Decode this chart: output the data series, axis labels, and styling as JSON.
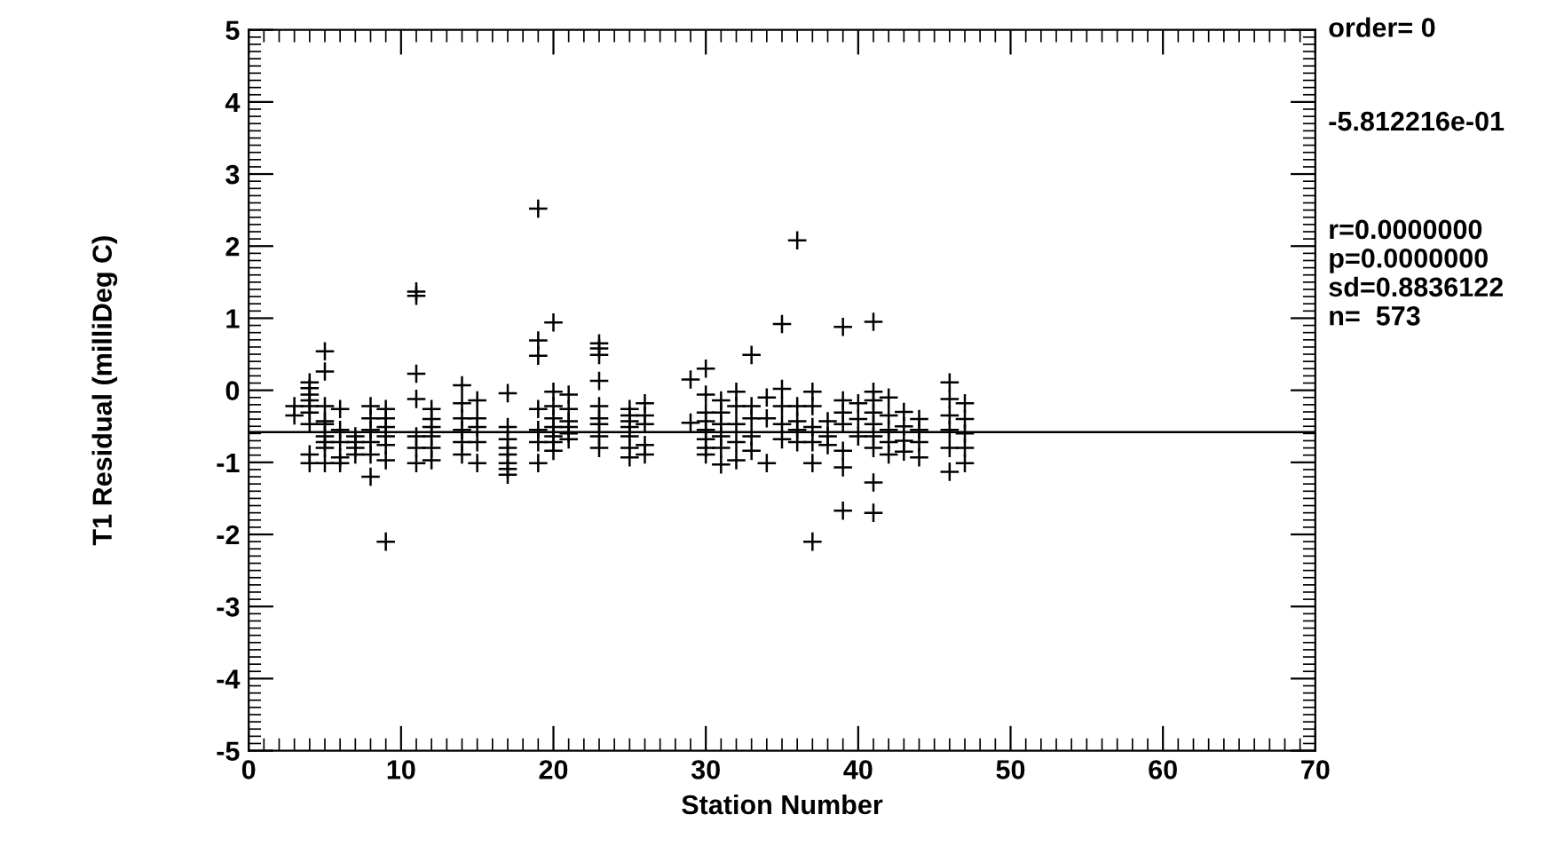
{
  "chart_data": {
    "type": "scatter",
    "xlabel": "Station Number",
    "ylabel": "T1 Residual (milliDeg C)",
    "xlim": [
      0,
      70
    ],
    "xticks": [
      0,
      10,
      20,
      30,
      40,
      50,
      60,
      70
    ],
    "ylim": [
      -5,
      5
    ],
    "yticks": [
      -5,
      -4,
      -3,
      -2,
      -1,
      0,
      1,
      2,
      3,
      4,
      5
    ],
    "grid": false,
    "marker": "cross",
    "series": [
      {
        "color": "#000000",
        "x": [
          3,
          3,
          4,
          4,
          4,
          4,
          4,
          4,
          4,
          4,
          4,
          5,
          5,
          5,
          5,
          5,
          5,
          5,
          5,
          5,
          6,
          6,
          6,
          6,
          6,
          7,
          7,
          7,
          7,
          8,
          8,
          8,
          8,
          8,
          8,
          9,
          9,
          9,
          9,
          9,
          9,
          9,
          11,
          11,
          11,
          11,
          11,
          11,
          11,
          12,
          12,
          12,
          12,
          12,
          12,
          14,
          14,
          14,
          14,
          14,
          14,
          15,
          15,
          15,
          15,
          15,
          17,
          17,
          17,
          17,
          17,
          17,
          17,
          17,
          19,
          19,
          19,
          19,
          19,
          19,
          19,
          20,
          20,
          20,
          20,
          20,
          20,
          20,
          20,
          21,
          21,
          21,
          21,
          21,
          21,
          23,
          23,
          23,
          23,
          23,
          23,
          23,
          23,
          23,
          25,
          25,
          25,
          25,
          25,
          25,
          25,
          26,
          26,
          26,
          26,
          26,
          29,
          29,
          30,
          30,
          30,
          30,
          30,
          30,
          30,
          30,
          31,
          31,
          31,
          31,
          31,
          31,
          32,
          32,
          32,
          32,
          32,
          33,
          33,
          33,
          33,
          33,
          34,
          34,
          34,
          35,
          35,
          35,
          35,
          35,
          36,
          36,
          36,
          36,
          36,
          37,
          37,
          37,
          37,
          37,
          37,
          38,
          38,
          38,
          39,
          39,
          39,
          39,
          39,
          39,
          39,
          40,
          40,
          40,
          41,
          41,
          41,
          41,
          41,
          41,
          41,
          41,
          41,
          42,
          42,
          42,
          42,
          42,
          43,
          43,
          43,
          43,
          44,
          44,
          44,
          44,
          46,
          46,
          46,
          46,
          46,
          46,
          47,
          47,
          47,
          47,
          47
        ],
        "values": [
          -0.22,
          -0.35,
          0.11,
          0.03,
          -0.06,
          -0.14,
          -0.22,
          -0.31,
          -0.47,
          -0.89,
          -1.01,
          0.54,
          0.26,
          -0.22,
          -0.43,
          -0.47,
          -0.64,
          -0.72,
          -0.8,
          -1.01,
          -0.26,
          -0.55,
          -0.72,
          -0.93,
          -1.01,
          -0.64,
          -0.72,
          -0.8,
          -0.89,
          -0.22,
          -0.39,
          -0.55,
          -0.72,
          -0.89,
          -1.2,
          -0.26,
          -0.39,
          -0.51,
          -0.64,
          -0.76,
          -0.97,
          -2.1,
          1.37,
          1.31,
          0.23,
          -0.12,
          -0.64,
          -0.8,
          -1.01,
          -0.26,
          -0.4,
          -0.51,
          -0.64,
          -0.8,
          -0.97,
          0.07,
          -0.18,
          -0.39,
          -0.55,
          -0.72,
          -0.89,
          -0.14,
          -0.39,
          -0.51,
          -0.72,
          -1.01,
          -0.04,
          -0.51,
          -0.68,
          -0.8,
          -0.89,
          -1.01,
          -1.09,
          -1.17,
          2.52,
          0.69,
          0.48,
          -0.26,
          -0.55,
          -0.72,
          -1.01,
          0.94,
          -0.02,
          -0.22,
          -0.39,
          -0.51,
          -0.64,
          -0.72,
          -0.84,
          -0.06,
          -0.26,
          -0.43,
          -0.51,
          -0.6,
          -0.68,
          0.65,
          0.58,
          0.49,
          0.13,
          -0.22,
          -0.39,
          -0.47,
          -0.64,
          -0.8,
          -0.26,
          -0.35,
          -0.43,
          -0.51,
          -0.64,
          -0.8,
          -0.93,
          -0.18,
          -0.35,
          -0.47,
          -0.76,
          -0.89,
          0.15,
          -0.45,
          0.3,
          -0.06,
          -0.31,
          -0.43,
          -0.55,
          -0.68,
          -0.8,
          -0.89,
          -0.14,
          -0.31,
          -0.47,
          -0.64,
          -0.8,
          -1.03,
          -0.02,
          -0.22,
          -0.47,
          -0.72,
          -0.97,
          0.49,
          -0.22,
          -0.39,
          -0.64,
          -0.84,
          -0.1,
          -0.39,
          -1.01,
          0.92,
          0.02,
          -0.22,
          -0.47,
          -0.68,
          2.08,
          -0.22,
          -0.43,
          -0.55,
          -0.72,
          -0.02,
          -0.22,
          -0.51,
          -0.72,
          -1.01,
          -2.1,
          -0.43,
          -0.64,
          -0.76,
          0.88,
          -0.14,
          -0.31,
          -0.47,
          -0.84,
          -1.07,
          -1.67,
          -0.18,
          -0.4,
          -0.64,
          0.95,
          -0.02,
          -0.14,
          -0.31,
          -0.47,
          -0.64,
          -0.8,
          -1.28,
          -1.7,
          -0.1,
          -0.35,
          -0.55,
          -0.72,
          -0.89,
          -0.3,
          -0.5,
          -0.7,
          -0.85,
          -0.4,
          -0.55,
          -0.72,
          -0.93,
          0.11,
          -0.12,
          -0.35,
          -0.55,
          -0.8,
          -1.13,
          -0.18,
          -0.4,
          -0.6,
          -0.8,
          -1.01
        ]
      }
    ],
    "ref_lines": [
      {
        "axis": "y",
        "value": -0.5812216,
        "color": "#000000"
      }
    ],
    "annotations": [
      "order= 0",
      "-5.812216e-01",
      "r=0.0000000",
      "p=0.0000000",
      "sd=0.8836122",
      "n=  573"
    ]
  }
}
